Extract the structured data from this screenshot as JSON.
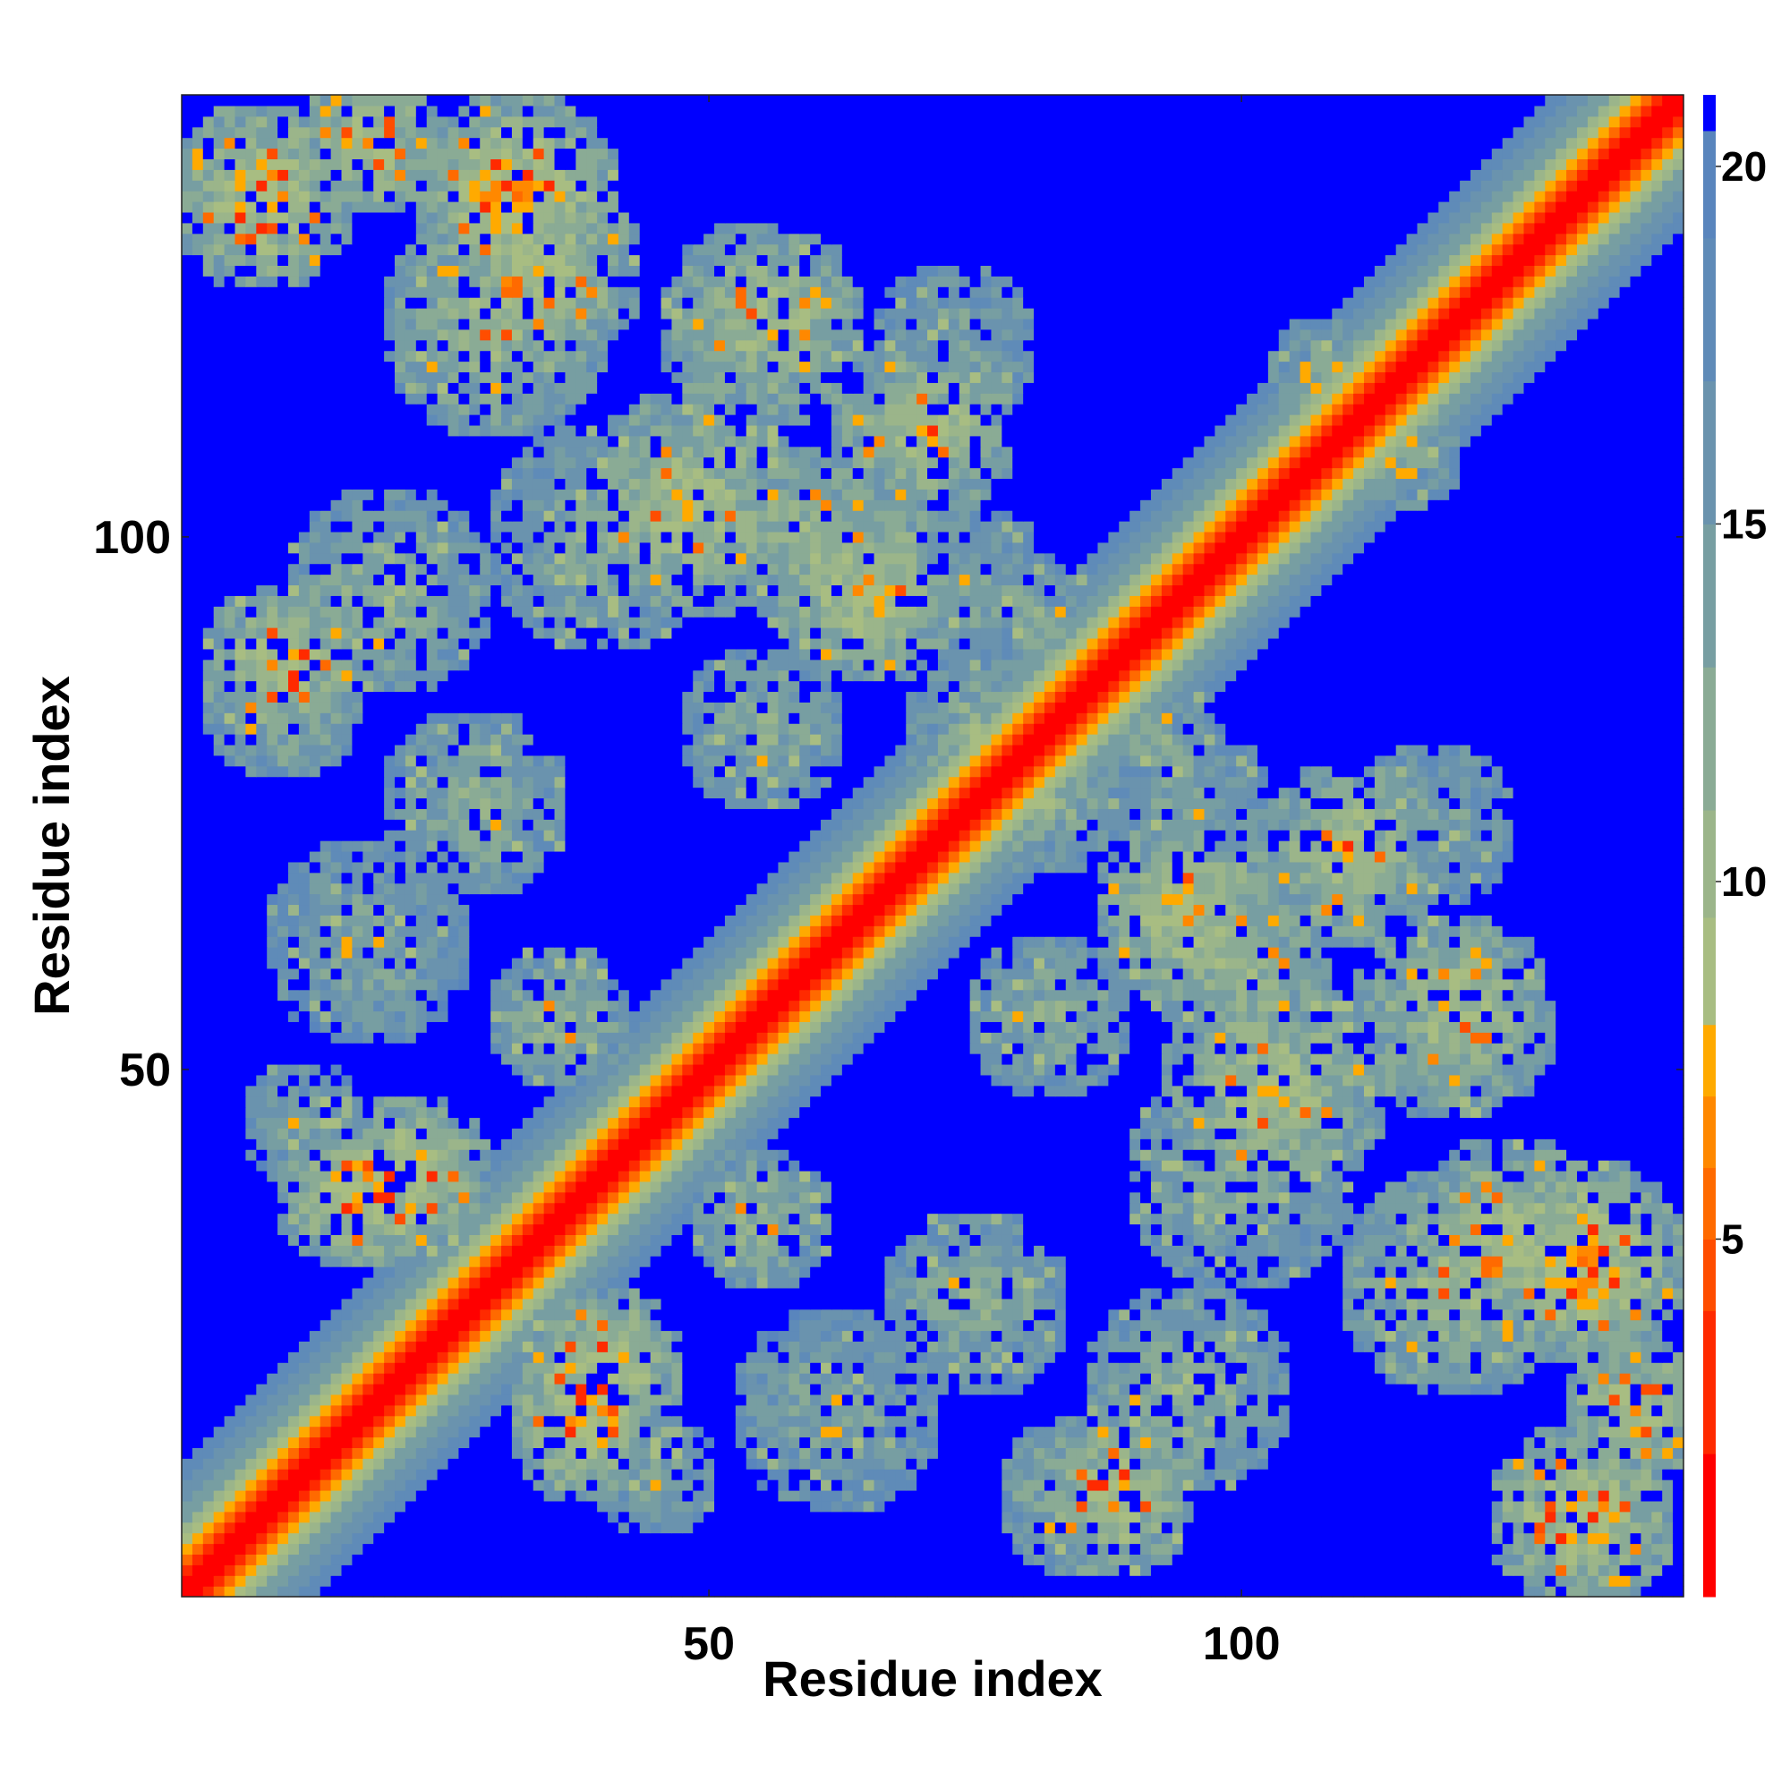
{
  "chart_data": {
    "type": "heatmap",
    "title": "",
    "xlabel": "Residue index",
    "ylabel": "Residue index",
    "n_residues": 141,
    "xlim": [
      1,
      141
    ],
    "ylim": [
      1,
      141
    ],
    "xticks": [
      50,
      100
    ],
    "yticks": [
      50,
      100
    ],
    "xtick_labels": [
      "50",
      "100"
    ],
    "ytick_labels": [
      "50",
      "100"
    ],
    "symmetric": true,
    "grid": false,
    "colorbar": {
      "position": "right",
      "range": [
        0,
        21
      ],
      "ticks": [
        5,
        10,
        15,
        20
      ],
      "tick_labels": [
        "5",
        "10",
        "15",
        "20"
      ],
      "bands": [
        {
          "from": 0,
          "to": 2,
          "color": "#ff0000"
        },
        {
          "from": 2,
          "to": 4,
          "color": "#ff2a00"
        },
        {
          "from": 4,
          "to": 5,
          "color": "#ff4d00"
        },
        {
          "from": 5,
          "to": 6,
          "color": "#ff6a00"
        },
        {
          "from": 6,
          "to": 7,
          "color": "#ff8800"
        },
        {
          "from": 7,
          "to": 8,
          "color": "#ffaa00"
        },
        {
          "from": 8,
          "to": 9.5,
          "color": "#a8bd82"
        },
        {
          "from": 9.5,
          "to": 11,
          "color": "#9bb58a"
        },
        {
          "from": 11,
          "to": 13,
          "color": "#8aab95"
        },
        {
          "from": 13,
          "to": 15,
          "color": "#779ea2"
        },
        {
          "from": 15,
          "to": 17,
          "color": "#6a93ae"
        },
        {
          "from": 17,
          "to": 19,
          "color": "#5f8bb8"
        },
        {
          "from": 19,
          "to": 20.5,
          "color": "#5985bd"
        },
        {
          "from": 20.5,
          "to": 21,
          "color": "#0000ff"
        }
      ]
    },
    "diagonal_band": [
      {
        "max_offset": 1,
        "value": 1.5
      },
      {
        "max_offset": 2,
        "value": 3.5
      },
      {
        "max_offset": 3,
        "value": 5.5
      },
      {
        "max_offset": 4,
        "value": 7.5
      },
      {
        "max_offset": 5,
        "value": 9.0
      },
      {
        "max_offset": 6,
        "value": 10.5
      },
      {
        "max_offset": 8,
        "value": 13.0
      },
      {
        "max_offset": 10,
        "value": 16.0
      },
      {
        "max_offset": 12,
        "value": 18.5
      }
    ],
    "contact_regions": [
      {
        "i": 8,
        "j": 132,
        "r": 9,
        "core": 7.5
      },
      {
        "i": 30,
        "j": 120,
        "r": 11,
        "core": 10
      },
      {
        "i": 48,
        "j": 103,
        "r": 11,
        "core": 9
      },
      {
        "i": 60,
        "j": 100,
        "r": 9,
        "core": 10
      },
      {
        "i": 75,
        "j": 95,
        "r": 8,
        "core": 13
      },
      {
        "i": 20,
        "j": 95,
        "r": 10,
        "core": 11
      },
      {
        "i": 10,
        "j": 88,
        "r": 8,
        "core": 8
      },
      {
        "i": 28,
        "j": 75,
        "r": 9,
        "core": 12
      },
      {
        "i": 22,
        "j": 40,
        "r": 8,
        "core": 7.5
      },
      {
        "i": 18,
        "j": 38,
        "r": 7,
        "core": 7
      },
      {
        "i": 36,
        "j": 55,
        "r": 7,
        "core": 11
      },
      {
        "i": 38,
        "j": 16,
        "r": 7,
        "core": 8
      },
      {
        "i": 45,
        "j": 12,
        "r": 6,
        "core": 13
      },
      {
        "i": 62,
        "j": 18,
        "r": 10,
        "core": 13
      },
      {
        "i": 85,
        "j": 10,
        "r": 8,
        "core": 11
      },
      {
        "i": 82,
        "j": 75,
        "r": 7,
        "core": 11
      },
      {
        "i": 95,
        "j": 65,
        "r": 9,
        "core": 8
      },
      {
        "i": 110,
        "j": 70,
        "r": 9,
        "core": 9
      },
      {
        "i": 120,
        "j": 55,
        "r": 10,
        "core": 9.5
      },
      {
        "i": 132,
        "j": 32,
        "r": 10,
        "core": 7
      },
      {
        "i": 137,
        "j": 18,
        "r": 7,
        "core": 8
      },
      {
        "i": 125,
        "j": 35,
        "r": 9,
        "core": 9
      },
      {
        "i": 100,
        "j": 40,
        "r": 11,
        "core": 12
      },
      {
        "i": 108,
        "j": 115,
        "r": 6,
        "core": 12
      },
      {
        "i": 115,
        "j": 108,
        "r": 6,
        "core": 12
      },
      {
        "i": 73,
        "j": 118,
        "r": 8,
        "core": 13
      },
      {
        "i": 55,
        "j": 82,
        "r": 8,
        "core": 12
      },
      {
        "i": 92,
        "j": 82,
        "r": 6,
        "core": 12
      }
    ]
  }
}
